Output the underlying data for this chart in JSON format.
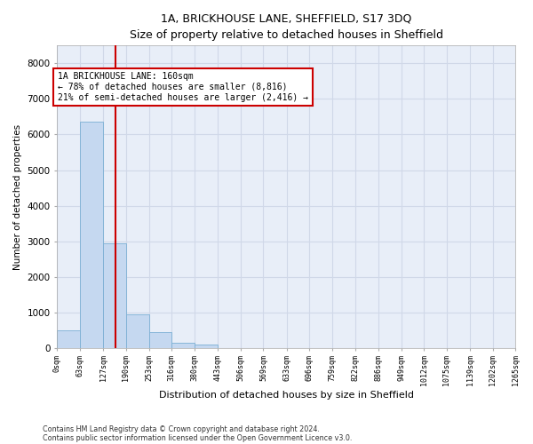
{
  "title1": "1A, BRICKHOUSE LANE, SHEFFIELD, S17 3DQ",
  "title2": "Size of property relative to detached houses in Sheffield",
  "xlabel": "Distribution of detached houses by size in Sheffield",
  "ylabel": "Number of detached properties",
  "bar_color": "#c5d8f0",
  "bar_edge_color": "#7bafd4",
  "background_color": "#e8eef8",
  "grid_color": "#d0d8e8",
  "vline_x": 160,
  "vline_color": "#cc0000",
  "annotation_text": "1A BRICKHOUSE LANE: 160sqm\n← 78% of detached houses are smaller (8,816)\n21% of semi-detached houses are larger (2,416) →",
  "annotation_box_color": "#cc0000",
  "bin_width": 63,
  "bin_starts": [
    0,
    63,
    127,
    190,
    253,
    316,
    380,
    443,
    506,
    569,
    633,
    696,
    759,
    822,
    886,
    949,
    1012,
    1075,
    1139,
    1202
  ],
  "bin_labels": [
    "0sqm",
    "63sqm",
    "127sqm",
    "190sqm",
    "253sqm",
    "316sqm",
    "380sqm",
    "443sqm",
    "506sqm",
    "569sqm",
    "633sqm",
    "696sqm",
    "759sqm",
    "822sqm",
    "886sqm",
    "949sqm",
    "1012sqm",
    "1075sqm",
    "1139sqm",
    "1202sqm",
    "1265sqm"
  ],
  "bar_heights": [
    500,
    6350,
    2950,
    950,
    440,
    150,
    100,
    0,
    0,
    0,
    0,
    0,
    0,
    0,
    0,
    0,
    0,
    0,
    0,
    0
  ],
  "ylim": [
    0,
    8500
  ],
  "yticks": [
    0,
    1000,
    2000,
    3000,
    4000,
    5000,
    6000,
    7000,
    8000
  ],
  "footnote1": "Contains HM Land Registry data © Crown copyright and database right 2024.",
  "footnote2": "Contains public sector information licensed under the Open Government Licence v3.0.",
  "fig_width": 6.0,
  "fig_height": 5.0
}
